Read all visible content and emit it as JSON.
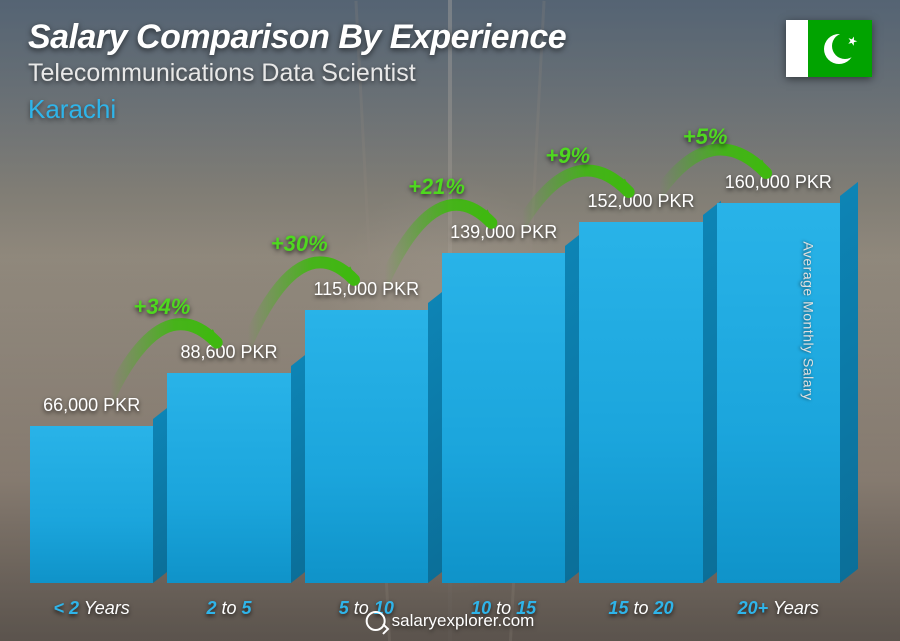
{
  "header": {
    "title": "Salary Comparison By Experience",
    "subtitle": "Telecommunications Data Scientist",
    "location": "Karachi"
  },
  "flag": {
    "country": "Pakistan",
    "left_color": "#ffffff",
    "right_color": "#01a300"
  },
  "chart": {
    "type": "bar",
    "bar_color_front": "#1ba5dc",
    "bar_color_top": "#3fbce9",
    "bar_color_side": "#0b7aa5",
    "max_value": 160000,
    "currency": "PKR",
    "ylabel": "Average Monthly Salary",
    "ylabel_fontsize": 14,
    "title_fontsize": 34,
    "subtitle_fontsize": 25,
    "location_fontsize": 26,
    "value_label_fontsize": 18,
    "category_label_fontsize": 18,
    "pct_label_fontsize": 22,
    "pct_label_color": "#4fd820",
    "arrow_color": "#3fb810",
    "category_primary_color": "#2fb4e9",
    "category_secondary_color": "#ffffff",
    "bars": [
      {
        "label_p1": "< 2",
        "label_p2": " Years",
        "value": 66000,
        "value_label": "66,000 PKR"
      },
      {
        "label_p1": "2",
        "label_p2": " to ",
        "label_p3": "5",
        "value": 88600,
        "value_label": "88,600 PKR",
        "pct": "+34%"
      },
      {
        "label_p1": "5",
        "label_p2": " to ",
        "label_p3": "10",
        "value": 115000,
        "value_label": "115,000 PKR",
        "pct": "+30%"
      },
      {
        "label_p1": "10",
        "label_p2": " to ",
        "label_p3": "15",
        "value": 139000,
        "value_label": "139,000 PKR",
        "pct": "+21%"
      },
      {
        "label_p1": "15",
        "label_p2": " to ",
        "label_p3": "20",
        "value": 152000,
        "value_label": "152,000 PKR",
        "pct": "+9%"
      },
      {
        "label_p1": "20+",
        "label_p2": " Years",
        "value": 160000,
        "value_label": "160,000 PKR",
        "pct": "+5%"
      }
    ]
  },
  "footer": {
    "brand": "salaryexplorer.com"
  }
}
